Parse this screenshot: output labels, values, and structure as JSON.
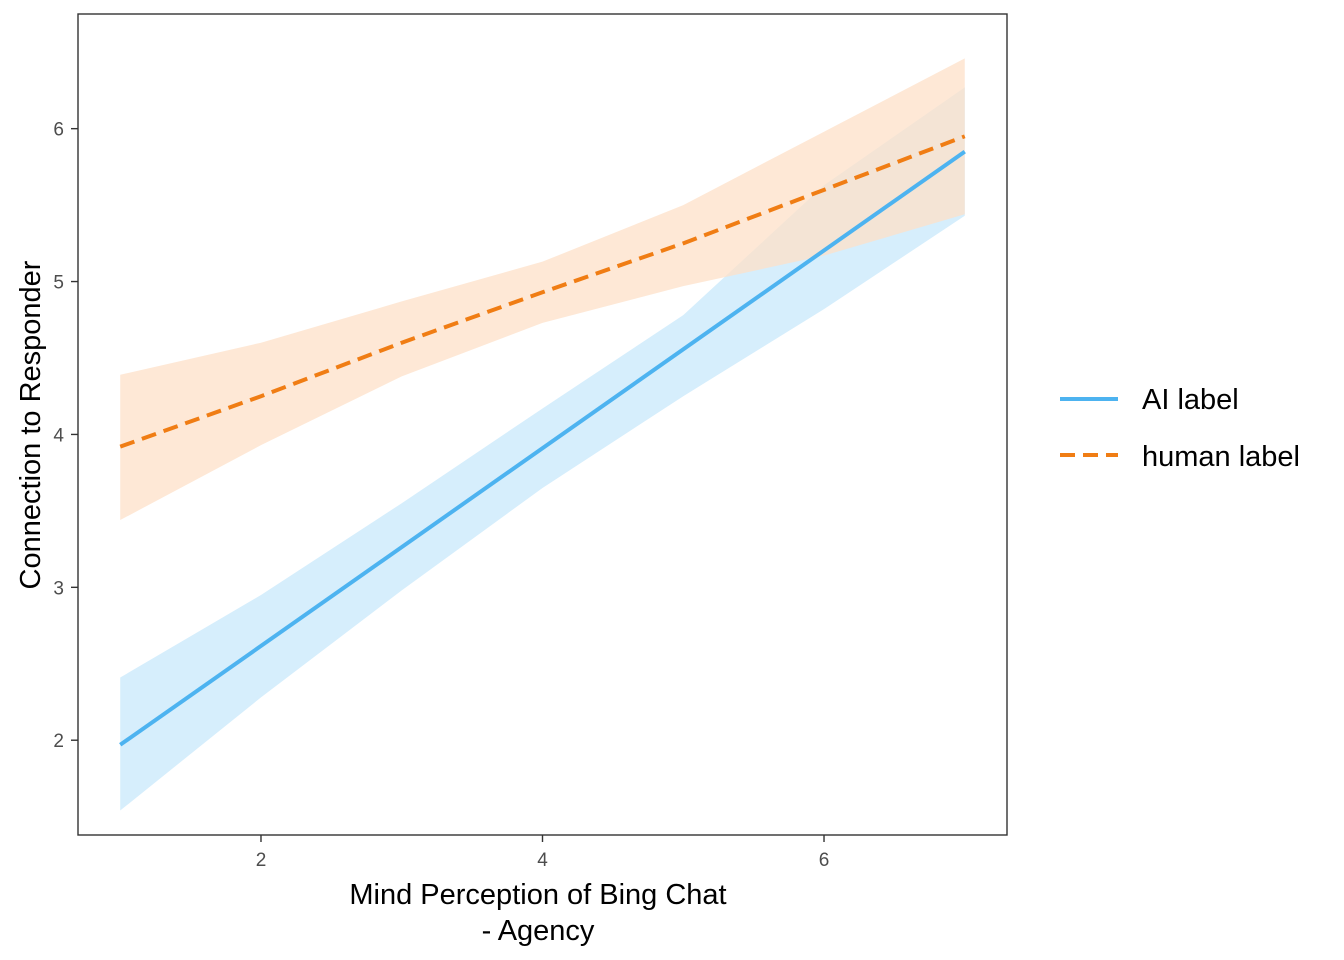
{
  "chart_data": {
    "type": "line",
    "xlabel_line1": "Mind Perception of Bing Chat",
    "xlabel_line2": "- Agency",
    "ylabel": "Connection to Responder",
    "xlim": [
      0.7,
      7.3
    ],
    "ylim": [
      1.38,
      6.75
    ],
    "x_ticks": [
      2,
      4,
      6
    ],
    "y_ticks": [
      2,
      3,
      4,
      5,
      6
    ],
    "grid": false,
    "legend_position": "right",
    "series": [
      {
        "name": "AI label",
        "color": "#4db3f0",
        "band_color": "#d6eefc",
        "line_style": "solid",
        "x": [
          1,
          7
        ],
        "y": [
          1.97,
          5.85
        ],
        "ci_x": [
          1,
          2,
          3,
          4,
          5,
          6,
          7
        ],
        "ci_lower": [
          1.54,
          2.28,
          2.98,
          3.65,
          4.25,
          4.82,
          5.43
        ],
        "ci_upper": [
          2.41,
          2.95,
          3.55,
          4.17,
          4.78,
          5.63,
          6.27
        ]
      },
      {
        "name": "human label",
        "color": "#f07d14",
        "band_color": "#fde0c8",
        "line_style": "dashed",
        "x": [
          1,
          2,
          3,
          4,
          5,
          6,
          7
        ],
        "y": [
          3.92,
          4.25,
          4.6,
          4.93,
          5.25,
          5.6,
          5.95
        ],
        "ci_x": [
          1,
          2,
          3,
          4,
          5,
          6,
          7
        ],
        "ci_lower": [
          3.44,
          3.93,
          4.38,
          4.73,
          4.97,
          5.17,
          5.44
        ],
        "ci_upper": [
          4.39,
          4.6,
          4.87,
          5.13,
          5.5,
          5.98,
          6.46
        ]
      }
    ]
  }
}
